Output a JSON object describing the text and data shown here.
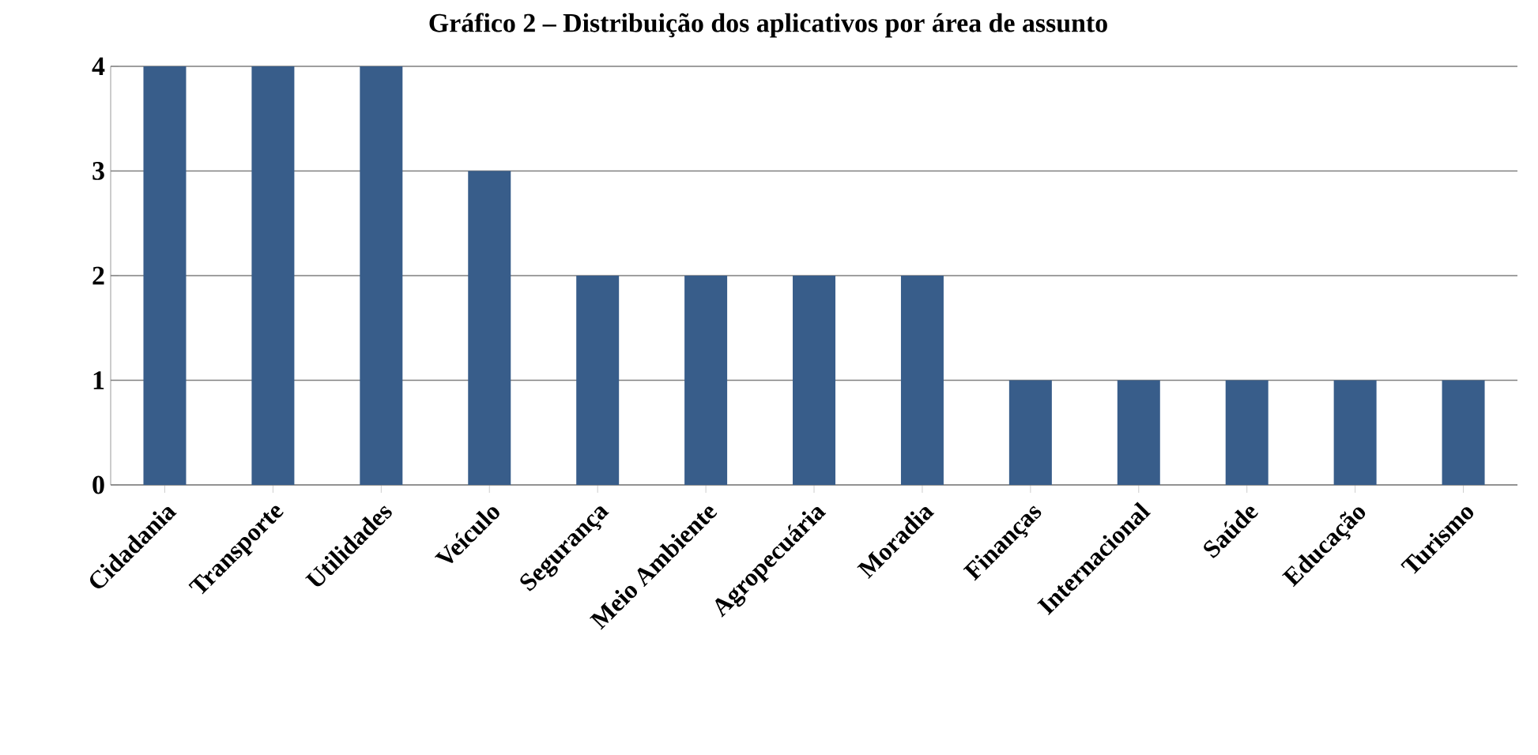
{
  "chart_data": {
    "type": "bar",
    "title": "Gráfico 2 – Distribuição dos aplicativos por área de assunto",
    "categories": [
      "Cidadania",
      "Transporte",
      "Utilidades",
      "Veículo",
      "Segurança",
      "Meio Ambiente",
      "Agropecuária",
      "Moradia",
      "Finanças",
      "Internacional",
      "Saúde",
      "Educação",
      "Turismo"
    ],
    "values": [
      4,
      4,
      4,
      3,
      2,
      2,
      2,
      2,
      1,
      1,
      1,
      1,
      1
    ],
    "color": "#385d8a",
    "ylim": [
      0,
      4
    ],
    "yticks": [
      0,
      1,
      2,
      3,
      4
    ],
    "grid": "y",
    "legend": false
  }
}
